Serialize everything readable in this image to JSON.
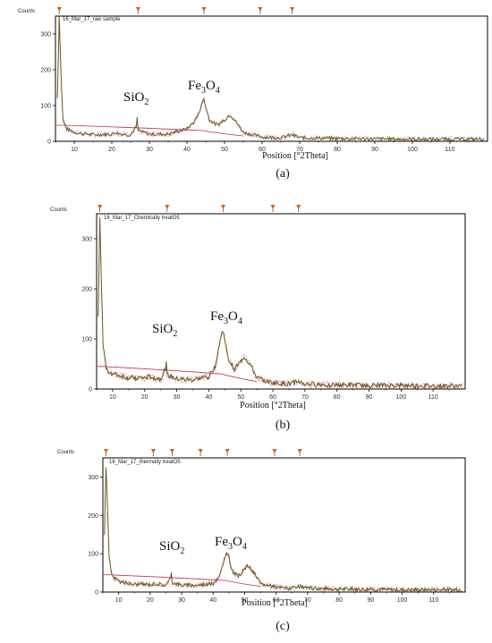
{
  "chart_data": [
    {
      "type": "line",
      "panel_label": "(a)",
      "sample_title": "16_Mar_17_raw sample",
      "ylabel": "Counts",
      "xlabel": "Position [°2Theta]",
      "xlim": [
        5,
        120
      ],
      "ylim": [
        0,
        350
      ],
      "xticks": [
        10,
        20,
        30,
        40,
        50,
        60,
        70,
        80,
        90,
        100,
        110
      ],
      "yticks": [
        0,
        100,
        200,
        300
      ],
      "annotations": [
        {
          "label": "SiO",
          "sub": "2",
          "x": 26.7
        },
        {
          "label": "Fe",
          "sub": "3",
          "label2": "O",
          "sub2": "4",
          "x": 44.5
        }
      ],
      "reference_markers": [
        6,
        27,
        44.5,
        59.5,
        68
      ],
      "baseline_level": 45,
      "series": {
        "x": [
          5.5,
          6,
          6.5,
          7,
          8,
          10,
          15,
          20,
          21,
          22,
          25,
          26.5,
          26.7,
          27,
          30,
          35,
          40,
          42,
          43,
          44,
          44.5,
          45,
          46,
          48,
          50,
          51.5,
          53,
          55,
          60,
          65,
          68,
          70,
          80,
          90,
          100,
          110,
          119
        ],
        "y": [
          120,
          350,
          180,
          60,
          35,
          25,
          18,
          20,
          25,
          21,
          18,
          40,
          70,
          30,
          20,
          20,
          35,
          55,
          75,
          105,
          120,
          95,
          60,
          45,
          60,
          75,
          55,
          25,
          12,
          10,
          18,
          10,
          8,
          7,
          6,
          6,
          6
        ]
      }
    },
    {
      "type": "line",
      "panel_label": "(b)",
      "sample_title": "16_Mar_17_Chemically treatO5",
      "ylabel": "Counts",
      "xlabel": "Position [°2Theta]",
      "xlim": [
        5,
        120
      ],
      "ylim": [
        0,
        350
      ],
      "xticks": [
        10,
        20,
        30,
        40,
        50,
        60,
        70,
        80,
        90,
        100,
        110
      ],
      "yticks": [
        0,
        100,
        200,
        300
      ],
      "annotations": [
        {
          "label": "SiO",
          "sub": "2",
          "x": 26.7
        },
        {
          "label": "Fe",
          "sub": "3",
          "label2": "O",
          "sub2": "4",
          "x": 44.5
        }
      ],
      "reference_markers": [
        6,
        27,
        44.5,
        60,
        68
      ],
      "baseline_level": 45,
      "series": {
        "x": [
          5.5,
          6,
          6.5,
          7,
          8,
          10,
          15,
          20,
          22,
          25,
          26.5,
          26.7,
          27,
          30,
          35,
          40,
          42,
          43,
          44,
          44.5,
          45,
          46,
          48,
          50,
          51,
          53,
          55,
          60,
          65,
          68,
          70,
          80,
          90,
          100,
          110,
          119
        ],
        "y": [
          150,
          340,
          210,
          90,
          40,
          30,
          22,
          22,
          24,
          20,
          40,
          65,
          28,
          20,
          18,
          25,
          45,
          80,
          110,
          115,
          100,
          60,
          40,
          55,
          65,
          48,
          22,
          12,
          10,
          15,
          10,
          8,
          7,
          7,
          6,
          6
        ]
      }
    },
    {
      "type": "line",
      "panel_label": "(c)",
      "sample_title": "16_Mar_17_thermally treatO5",
      "ylabel": "Counts",
      "xlabel": "Position [°2Theta]",
      "xlim": [
        5,
        120
      ],
      "ylim": [
        0,
        350
      ],
      "xticks": [
        10,
        20,
        30,
        40,
        50,
        60,
        70,
        80,
        90,
        100,
        110
      ],
      "yticks": [
        0,
        100,
        200,
        300
      ],
      "annotations": [
        {
          "label": "SiO",
          "sub": "2",
          "x": 26.7
        },
        {
          "label": "Fe",
          "sub": "3",
          "label2": "O",
          "sub2": "4",
          "x": 44.5
        }
      ],
      "reference_markers": [
        6,
        21,
        27,
        36,
        44.5,
        59.5,
        67.5
      ],
      "baseline_level": 45,
      "series": {
        "x": [
          5.5,
          6,
          6.5,
          7,
          8,
          10,
          15,
          20,
          22,
          25,
          26.5,
          26.7,
          27,
          30,
          35,
          40,
          42,
          43,
          44,
          44.5,
          45,
          46,
          48,
          50,
          51,
          53,
          55,
          60,
          65,
          68,
          70,
          80,
          90,
          100,
          110,
          119
        ],
        "y": [
          150,
          330,
          210,
          90,
          40,
          28,
          20,
          20,
          22,
          18,
          35,
          60,
          25,
          18,
          18,
          22,
          40,
          70,
          95,
          100,
          90,
          55,
          40,
          60,
          70,
          50,
          22,
          12,
          10,
          14,
          10,
          8,
          7,
          6,
          6,
          6
        ]
      }
    }
  ],
  "colors": {
    "data_line": "#6b5a1f",
    "data_noise": "#c8205a",
    "baseline": "#c03050",
    "marker": "#d4601a",
    "axis": "#000000"
  }
}
